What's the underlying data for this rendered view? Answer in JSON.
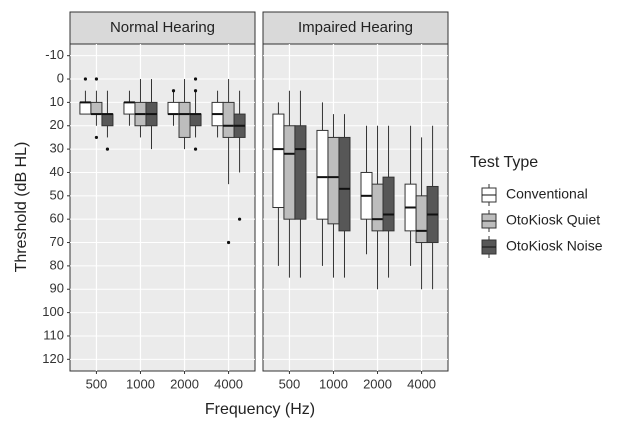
{
  "xlabel": "Frequency (Hz)",
  "ylabel": "Threshold (dB HL)",
  "legend_title": "Test Type",
  "chart_data": [
    {
      "type": "box",
      "title": "Normal Hearing",
      "categories": [
        "500",
        "1000",
        "2000",
        "4000"
      ],
      "ylim": [
        125,
        -15
      ],
      "yticks": [
        -10,
        0,
        10,
        20,
        30,
        40,
        50,
        60,
        70,
        80,
        90,
        100,
        110,
        120
      ],
      "grid": true,
      "series": [
        {
          "name": "Conventional",
          "color": "#ffffff",
          "values": [
            {
              "low": 5,
              "q1": 10,
              "median": 10,
              "q3": 15,
              "high": 15,
              "outliers": [
                0
              ]
            },
            {
              "low": 5,
              "q1": 10,
              "median": 10,
              "q3": 15,
              "high": 20,
              "outliers": []
            },
            {
              "low": 5,
              "q1": 10,
              "median": 15,
              "q3": 15,
              "high": 20,
              "outliers": [
                5
              ]
            },
            {
              "low": 5,
              "q1": 10,
              "median": 15,
              "q3": 20,
              "high": 25,
              "outliers": []
            }
          ]
        },
        {
          "name": "OtoKiosk Quiet",
          "color": "#bdbdbd",
          "values": [
            {
              "low": 5,
              "q1": 10,
              "median": 15,
              "q3": 15,
              "high": 20,
              "outliers": [
                0,
                25
              ]
            },
            {
              "low": 0,
              "q1": 10,
              "median": 15,
              "q3": 20,
              "high": 25,
              "outliers": []
            },
            {
              "low": 0,
              "q1": 10,
              "median": 15,
              "q3": 25,
              "high": 30,
              "outliers": []
            },
            {
              "low": 0,
              "q1": 10,
              "median": 20,
              "q3": 25,
              "high": 45,
              "outliers": [
                70
              ]
            }
          ]
        },
        {
          "name": "OtoKiosk Noise",
          "color": "#575757",
          "values": [
            {
              "low": 5,
              "q1": 15,
              "median": 15,
              "q3": 20,
              "high": 25,
              "outliers": [
                30
              ]
            },
            {
              "low": 0,
              "q1": 10,
              "median": 15,
              "q3": 20,
              "high": 30,
              "outliers": []
            },
            {
              "low": 5,
              "q1": 15,
              "median": 15,
              "q3": 20,
              "high": 25,
              "outliers": [
                0,
                5,
                30
              ]
            },
            {
              "low": 5,
              "q1": 15,
              "median": 20,
              "q3": 25,
              "high": 40,
              "outliers": [
                60
              ]
            }
          ]
        }
      ]
    },
    {
      "type": "box",
      "title": "Impaired Hearing",
      "categories": [
        "500",
        "1000",
        "2000",
        "4000"
      ],
      "series": [
        {
          "values": [
            {
              "low": 10,
              "q1": 15,
              "median": 30,
              "q3": 55,
              "high": 80,
              "outliers": []
            },
            {
              "low": 10,
              "q1": 22,
              "median": 42,
              "q3": 60,
              "high": 80,
              "outliers": []
            },
            {
              "low": 20,
              "q1": 40,
              "median": 50,
              "q3": 60,
              "high": 75,
              "outliers": []
            },
            {
              "low": 20,
              "q1": 45,
              "median": 55,
              "q3": 65,
              "high": 80,
              "outliers": []
            }
          ]
        },
        {
          "values": [
            {
              "low": 5,
              "q1": 20,
              "median": 32,
              "q3": 60,
              "high": 85,
              "outliers": []
            },
            {
              "low": 15,
              "q1": 25,
              "median": 42,
              "q3": 62,
              "high": 85,
              "outliers": []
            },
            {
              "low": 20,
              "q1": 45,
              "median": 60,
              "q3": 65,
              "high": 90,
              "outliers": []
            },
            {
              "low": 25,
              "q1": 50,
              "median": 65,
              "q3": 70,
              "high": 90,
              "outliers": []
            }
          ]
        },
        {
          "values": [
            {
              "low": 5,
              "q1": 20,
              "median": 30,
              "q3": 60,
              "high": 85,
              "outliers": []
            },
            {
              "low": 15,
              "q1": 25,
              "median": 47,
              "q3": 65,
              "high": 85,
              "outliers": []
            },
            {
              "low": 20,
              "q1": 42,
              "median": 58,
              "q3": 65,
              "high": 85,
              "outliers": []
            },
            {
              "low": 20,
              "q1": 46,
              "median": 58,
              "q3": 70,
              "high": 90,
              "outliers": []
            }
          ]
        }
      ]
    }
  ]
}
